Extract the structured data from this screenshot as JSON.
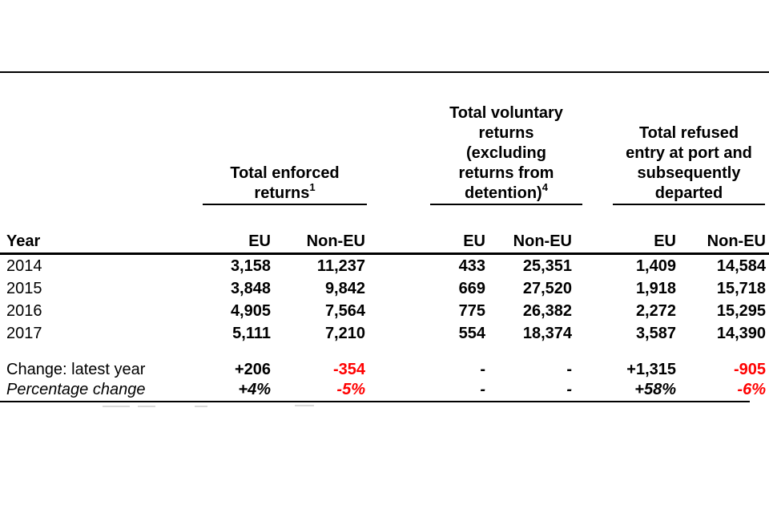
{
  "colors": {
    "text": "#000000",
    "negative": "#ff0000",
    "rule": "#000000",
    "background": "#ffffff"
  },
  "table": {
    "groups": [
      {
        "lines": [
          "Total enforced",
          "returns"
        ],
        "sup": "1"
      },
      {
        "lines": [
          "Total voluntary",
          "returns",
          "(excluding",
          "returns from",
          "detention)"
        ],
        "sup": "4"
      },
      {
        "lines": [
          "Total refused",
          "entry at port and",
          "subsequently",
          "departed"
        ],
        "sup": ""
      }
    ],
    "header": {
      "year": "Year",
      "cols": [
        "EU",
        "Non-EU",
        "EU",
        "Non-EU",
        "EU",
        "Non-EU"
      ]
    },
    "rows": [
      {
        "label": "2014",
        "cells": [
          "3,158",
          "11,237",
          "433",
          "25,351",
          "1,409",
          "14,584"
        ]
      },
      {
        "label": "2015",
        "cells": [
          "3,848",
          "9,842",
          "669",
          "27,520",
          "1,918",
          "15,718"
        ]
      },
      {
        "label": "2016",
        "cells": [
          "4,905",
          "7,564",
          "775",
          "26,382",
          "2,272",
          "15,295"
        ]
      },
      {
        "label": "2017",
        "cells": [
          "5,111",
          "7,210",
          "554",
          "18,374",
          "3,587",
          "14,390"
        ]
      }
    ],
    "change_row": {
      "label": "Change: latest year",
      "cells": [
        "+206",
        "-354",
        "-",
        "-",
        "+1,315",
        "-905"
      ]
    },
    "pct_row": {
      "label": "Percentage change",
      "cells": [
        "+4%",
        "-5%",
        "-",
        "-",
        "+58%",
        "-6%"
      ]
    }
  }
}
